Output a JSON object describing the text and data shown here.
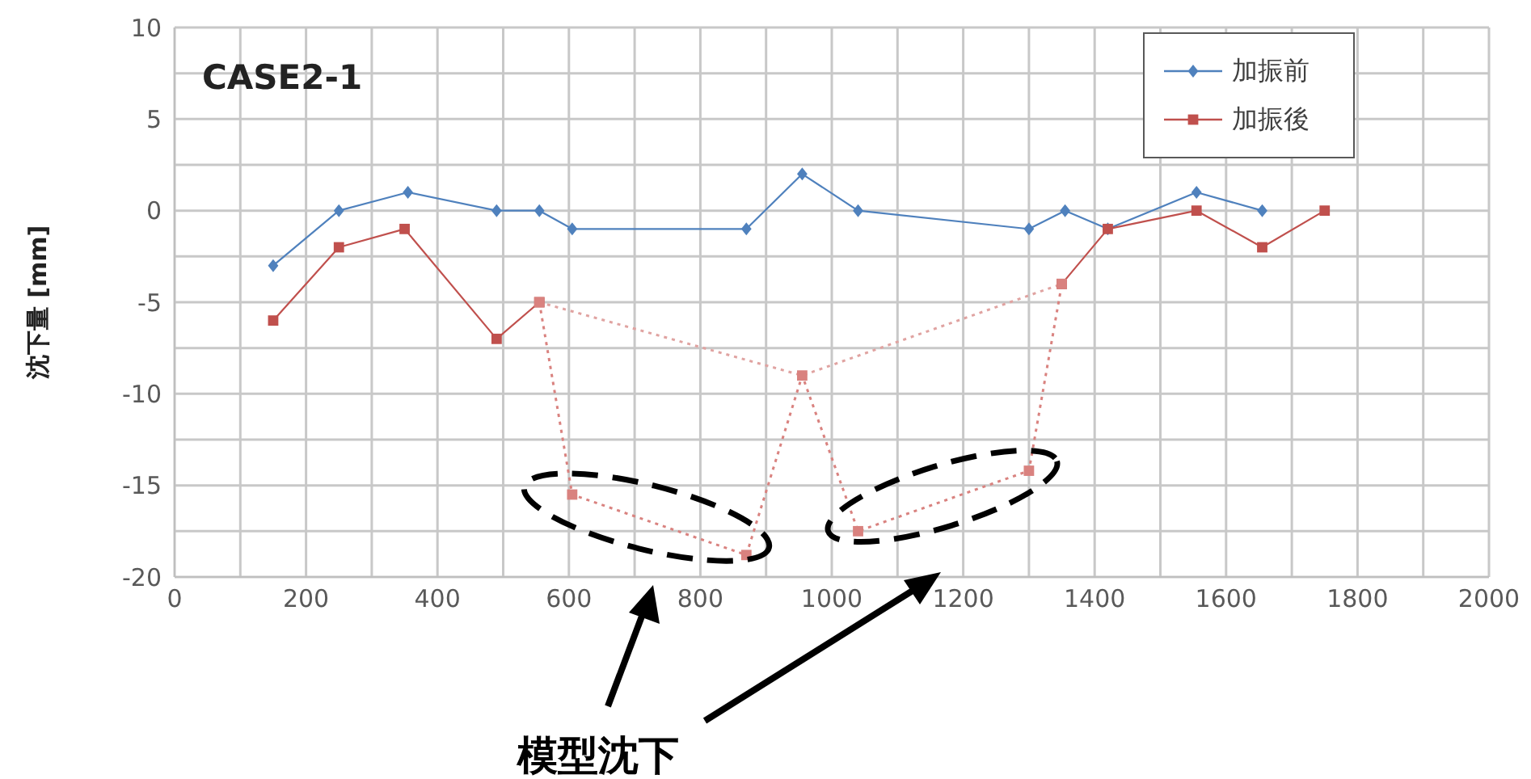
{
  "chart_data": {
    "type": "line",
    "title": "CASE2-1",
    "ylabel": "沈下量 [mm]",
    "annotations": [
      "模型沈下"
    ],
    "xlim": [
      0,
      2000
    ],
    "xticks": [
      0,
      {
        "value": 100,
        "label": null
      },
      200,
      {
        "value": 300,
        "label": null
      },
      400,
      {
        "value": 500,
        "label": null
      },
      600,
      {
        "value": 700,
        "label": null
      },
      800,
      {
        "value": 900,
        "label": null
      },
      1000,
      {
        "value": 1100,
        "label": null
      },
      1200,
      {
        "value": 1300,
        "label": null
      },
      1400,
      {
        "value": 1500,
        "label": null
      },
      1600,
      {
        "value": 1700,
        "label": null
      },
      1800,
      {
        "value": 1900,
        "label": null
      },
      2000
    ],
    "ylim": [
      -20,
      10
    ],
    "yticks": [
      -20,
      {
        "value": -17.5,
        "label": null
      },
      -15,
      {
        "value": -12.5,
        "label": null
      },
      -10,
      {
        "value": -7.5,
        "label": null
      },
      -5,
      {
        "value": -2.5,
        "label": null
      },
      0,
      {
        "value": 2.5,
        "label": null
      },
      5,
      {
        "value": 7.5,
        "label": null
      },
      10
    ],
    "grid": true,
    "legend": "top right",
    "series": [
      {
        "name": "加振前",
        "color": "#4f81bd",
        "marker": "diamond",
        "line_style": "solid",
        "x": [
          150,
          250,
          355,
          490,
          555,
          605,
          870,
          955,
          1040,
          1300,
          1355,
          1420,
          1555,
          1655
        ],
        "values": [
          -3,
          0,
          1,
          0,
          0,
          -1,
          -1,
          2,
          0,
          -1,
          0,
          -1,
          1,
          0
        ]
      },
      {
        "name": "加振後",
        "color": "#c0504d",
        "marker": "square",
        "line_style": "solid",
        "x": [
          150,
          250,
          350,
          490,
          555
        ],
        "values": [
          -6,
          -2,
          -1,
          -7,
          -5
        ]
      },
      {
        "color": "#c0504d",
        "marker": "square",
        "line_style": "solid",
        "x": [
          1350,
          1420,
          1555,
          1655,
          1750
        ],
        "values": [
          -4,
          -1,
          0,
          -2,
          0
        ]
      },
      {
        "color": "#d9827f",
        "marker": "square",
        "line_style": "dotted",
        "x": [
          555,
          605,
          870,
          955,
          1040,
          1300,
          1350
        ],
        "values": [
          -5,
          -15.5,
          -18.8,
          -9,
          -17.5,
          -14.2,
          -4
        ]
      },
      {
        "color": "#e0a3a1",
        "marker": "none",
        "line_style": "dotted",
        "x": [
          555,
          955,
          1350
        ],
        "values": [
          -5,
          -9,
          -4
        ]
      }
    ]
  }
}
